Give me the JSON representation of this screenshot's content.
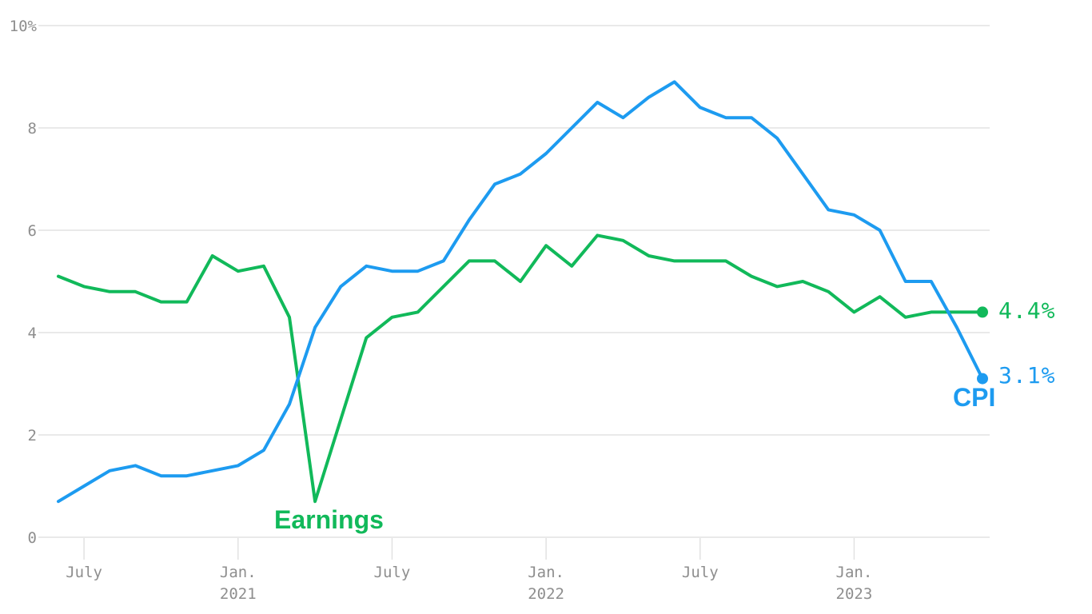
{
  "labels": {
    "earnings_annotation": "Earnings",
    "cpi_annotation": "CPI",
    "earnings_end_value": "4.4%",
    "cpi_end_value": "3.1%"
  },
  "colors": {
    "cpi_blue": "#1d9bf0",
    "earnings_green": "#11b95a",
    "gridline": "#e2e2e2",
    "axis_text": "#8e8e8e",
    "background": "#ffffff"
  },
  "chart_data": {
    "type": "line",
    "x": [
      "Jun 2020",
      "Jul 2020",
      "Aug 2020",
      "Sep 2020",
      "Oct 2020",
      "Nov 2020",
      "Dec 2020",
      "Jan 2021",
      "Feb 2021",
      "Mar 2021",
      "Apr 2021",
      "May 2021",
      "Jun 2021",
      "Jul 2021",
      "Aug 2021",
      "Sep 2021",
      "Oct 2021",
      "Nov 2021",
      "Dec 2021",
      "Jan 2022",
      "Feb 2022",
      "Mar 2022",
      "Apr 2022",
      "May 2022",
      "Jun 2022",
      "Jul 2022",
      "Aug 2022",
      "Sep 2022",
      "Oct 2022",
      "Nov 2022",
      "Dec 2022",
      "Jan 2023",
      "Feb 2023",
      "Mar 2023",
      "Apr 2023",
      "May 2023",
      "Jun 2023"
    ],
    "series": [
      {
        "name": "Earnings",
        "color": "#11b95a",
        "end_label": "4.4%",
        "values": [
          5.1,
          4.9,
          4.8,
          4.8,
          4.6,
          4.6,
          5.5,
          5.2,
          5.3,
          4.3,
          0.7,
          2.3,
          3.9,
          4.3,
          4.4,
          4.9,
          5.4,
          5.4,
          5.0,
          5.7,
          5.3,
          5.9,
          5.8,
          5.5,
          5.4,
          5.4,
          5.4,
          5.1,
          4.9,
          5.0,
          4.8,
          4.4,
          4.7,
          4.3,
          4.4,
          4.4,
          4.4
        ]
      },
      {
        "name": "CPI",
        "color": "#1d9bf0",
        "end_label": "3.1%",
        "values": [
          0.7,
          1.0,
          1.3,
          1.4,
          1.2,
          1.2,
          1.3,
          1.4,
          1.7,
          2.6,
          4.1,
          4.9,
          5.3,
          5.2,
          5.2,
          5.4,
          6.2,
          6.9,
          7.1,
          7.5,
          8.0,
          8.5,
          8.2,
          8.6,
          8.9,
          8.4,
          8.2,
          8.2,
          7.8,
          7.1,
          6.4,
          6.3,
          6.0,
          5.0,
          5.0,
          4.1,
          3.1
        ]
      }
    ],
    "title": "",
    "xlabel": "",
    "ylabel": "",
    "ylim": [
      0,
      10
    ],
    "yticks": [
      {
        "value": 0,
        "label": "0"
      },
      {
        "value": 2,
        "label": "2"
      },
      {
        "value": 4,
        "label": "4"
      },
      {
        "value": 6,
        "label": "6"
      },
      {
        "value": 8,
        "label": "8"
      },
      {
        "value": 10,
        "label": "10%"
      }
    ],
    "xticks": [
      {
        "index": 1,
        "label": "July",
        "year": ""
      },
      {
        "index": 7,
        "label": "Jan.",
        "year": "2021"
      },
      {
        "index": 13,
        "label": "July",
        "year": ""
      },
      {
        "index": 19,
        "label": "Jan.",
        "year": "2022"
      },
      {
        "index": 25,
        "label": "July",
        "year": ""
      },
      {
        "index": 31,
        "label": "Jan.",
        "year": "2023"
      }
    ],
    "grid": true,
    "legend_position": "inline-annotations"
  }
}
